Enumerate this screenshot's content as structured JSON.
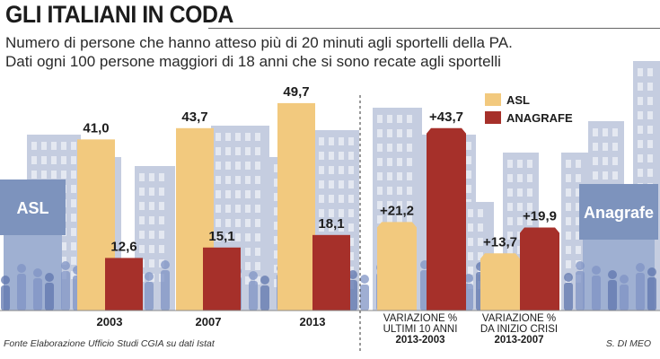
{
  "header": {
    "title": "GLI ITALIANI IN CODA",
    "subtitle_line1": "Numero di persone che hanno atteso più di 20 minuti agli sportelli della PA.",
    "subtitle_line2": "Dati ogni 100 persone maggiori di 18 anni che si sono recate agli sportelli"
  },
  "illustration": {
    "left_sign": "ASL",
    "right_sign": "Anagrafe"
  },
  "footer": {
    "source": "Fonte Elaborazione Ufficio Studi CGIA su dati Istat",
    "credit": "S. DI MEO"
  },
  "colors": {
    "asl": "#f2c97e",
    "anagrafe": "#a6302a",
    "building": "#c5cde0",
    "building_window": "#e4e8f1",
    "sign_panel": "#7d93bd",
    "crowd": "#7f93c4"
  },
  "chart_data": {
    "type": "bar",
    "categories": [
      {
        "label": [
          "2003"
        ]
      },
      {
        "label": [
          "2007"
        ]
      },
      {
        "label": [
          "2013"
        ]
      },
      {
        "label": [
          "VARIAZIONE %",
          "ULTIMI 10 ANNI",
          "2013-2003"
        ]
      },
      {
        "label": [
          "VARIAZIONE %",
          "DA INIZIO CRISI",
          "2013-2007"
        ]
      }
    ],
    "series": [
      {
        "name": "ASL",
        "values": [
          41.0,
          43.7,
          49.7,
          21.2,
          13.7
        ],
        "labels": [
          "41,0",
          "43,7",
          "49,7",
          "+21,2",
          "+13,7"
        ]
      },
      {
        "name": "ANAGRAFE",
        "values": [
          12.6,
          15.1,
          18.1,
          43.7,
          19.9
        ],
        "labels": [
          "12,6",
          "15,1",
          "18,1",
          "+43,7",
          "+19,9"
        ]
      }
    ],
    "legend_position": "top-right",
    "grid": false
  }
}
